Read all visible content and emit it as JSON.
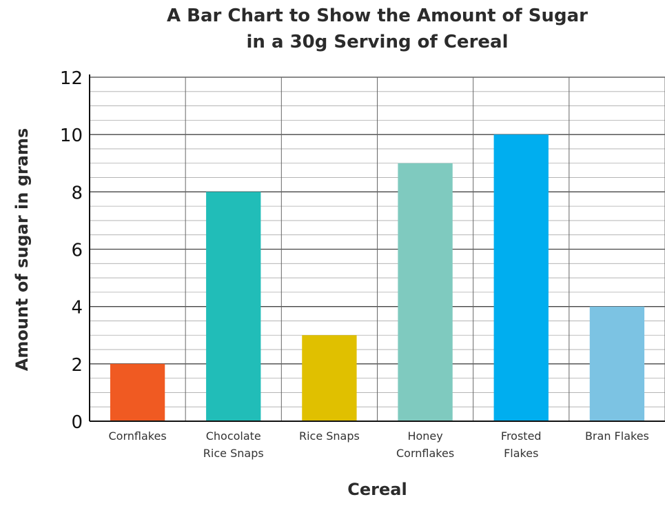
{
  "chart_data": {
    "type": "bar",
    "title_lines": [
      "A Bar Chart to Show the Amount of Sugar",
      "in a 30g Serving of Cereal"
    ],
    "xlabel": "Cereal",
    "ylabel": "Amount of sugar in grams",
    "categories": [
      [
        "Cornflakes"
      ],
      [
        "Chocolate",
        "Rice Snaps"
      ],
      [
        "Rice Snaps"
      ],
      [
        "Honey",
        "Cornflakes"
      ],
      [
        "Frosted",
        "Flakes"
      ],
      [
        "Bran Flakes"
      ]
    ],
    "values": [
      2,
      8,
      3,
      9,
      10,
      4
    ],
    "colors": [
      "#f05a22",
      "#21bdb8",
      "#e0c000",
      "#7fcabf",
      "#00aeef",
      "#7cc3e3"
    ],
    "ylim": [
      0,
      12
    ],
    "yticks": [
      "0",
      "2",
      "4",
      "6",
      "8",
      "10",
      "12"
    ],
    "grid": true
  }
}
